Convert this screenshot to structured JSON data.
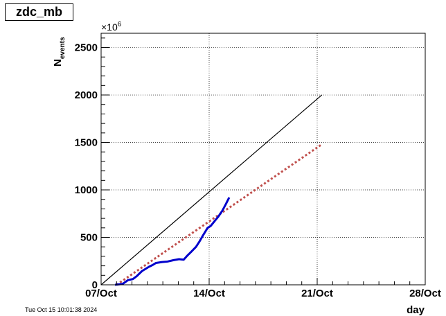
{
  "title": "zdc_mb",
  "timestamp": "Tue Oct 15 10:01:38 2024",
  "chart_data": {
    "type": "line",
    "xlabel": "day",
    "ylabel": "N",
    "ylabel_subscript": "events",
    "y_multiplier": "×10",
    "y_multiplier_exp": "6",
    "xlim": [
      0,
      21
    ],
    "ylim": [
      0,
      2650
    ],
    "x_ticks": [
      {
        "value": 0,
        "label": "07/Oct"
      },
      {
        "value": 7,
        "label": "14/Oct"
      },
      {
        "value": 14,
        "label": "21/Oct"
      },
      {
        "value": 21,
        "label": "28/Oct"
      }
    ],
    "y_ticks": [
      0,
      500,
      1000,
      1500,
      2000,
      2500
    ],
    "grid": true,
    "series": [
      {
        "style": "solid",
        "color": "#000000",
        "x": [
          0,
          14.3
        ],
        "y": [
          0,
          2000
        ]
      },
      {
        "style": "dotted",
        "color": "#c0504d",
        "x": [
          1.0,
          14.3
        ],
        "y": [
          0,
          1480
        ]
      },
      {
        "style": "thick",
        "color": "#0000cc",
        "x": [
          0.9,
          1.4,
          1.75,
          2.05,
          2.3,
          2.65,
          3.1,
          3.35,
          3.55,
          3.95,
          4.3,
          4.7,
          5.05,
          5.35,
          5.6,
          5.85,
          6.15,
          6.35,
          6.6,
          6.9,
          7.1,
          7.4,
          7.6,
          7.85,
          8.05,
          8.3
        ],
        "y": [
          0,
          10,
          50,
          60,
          90,
          145,
          190,
          210,
          230,
          240,
          245,
          260,
          270,
          265,
          310,
          350,
          400,
          450,
          520,
          600,
          620,
          680,
          720,
          780,
          840,
          920
        ]
      }
    ]
  }
}
